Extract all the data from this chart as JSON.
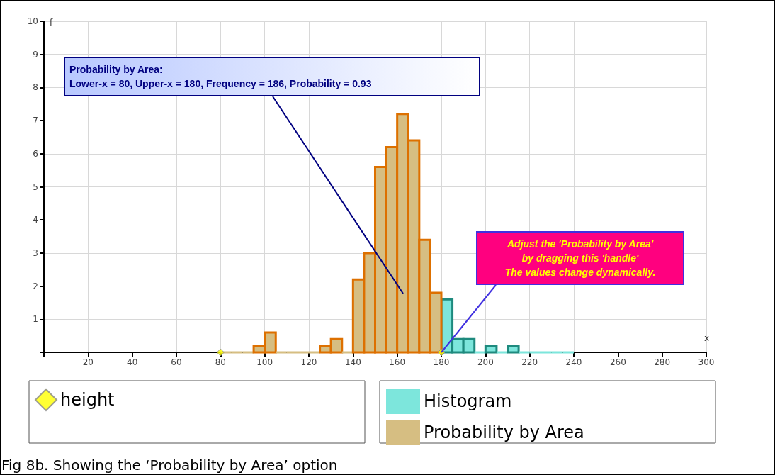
{
  "chart_data": {
    "type": "histogram",
    "xlabel": "x",
    "ylabel": "f",
    "bins": [
      80,
      85,
      90,
      95,
      100,
      105,
      110,
      115,
      120,
      125,
      130,
      135,
      140,
      145,
      150,
      155,
      160,
      165,
      170,
      175,
      180,
      185,
      190,
      195,
      200,
      205,
      210,
      215,
      220,
      225,
      230,
      235,
      240
    ],
    "series": [
      {
        "name": "height",
        "type": "scatter",
        "color": "#ffff00",
        "marker": "diamond",
        "x": [
          80,
          180
        ],
        "values": [
          0,
          0
        ]
      },
      {
        "name": "Histogram",
        "color": "#7de6dc",
        "values": [
          null,
          null,
          null,
          null,
          null,
          null,
          null,
          null,
          null,
          null,
          null,
          null,
          null,
          null,
          null,
          null,
          null,
          null,
          null,
          null,
          1.6,
          0.4,
          0.4,
          0,
          0.2,
          0,
          0.2,
          0,
          0,
          0,
          0,
          0
        ]
      },
      {
        "name": "Probability by Area",
        "color": "#d6be82",
        "values": [
          0,
          0,
          0,
          0.2,
          0.6,
          0,
          0,
          0,
          0,
          0.2,
          0.4,
          0,
          2.2,
          3.0,
          5.6,
          6.2,
          7.2,
          6.4,
          3.4,
          1.8,
          null,
          null,
          null,
          null,
          null,
          null,
          null,
          null,
          null,
          null,
          null,
          null
        ]
      }
    ],
    "xlim": [
      0,
      300
    ],
    "xticks": [
      {
        "value": 0,
        "label": null
      },
      20,
      40,
      60,
      80,
      100,
      120,
      140,
      160,
      180,
      200,
      220,
      240,
      260,
      280,
      300
    ],
    "ylim": [
      0,
      10
    ],
    "yticks": [
      {
        "value": 0,
        "label": null
      },
      1,
      2,
      3,
      4,
      5,
      6,
      7,
      8,
      9,
      10
    ],
    "grid": true,
    "legend": "bottom",
    "annotations": [
      "Probability by Area:\nLower-x = 80, Upper-x = 180, Frequency = 186, Probability = 0.93",
      {
        "text": "Adjust the 'Probability by Area'\nby dragging this 'handle'\nThe values change dynamically.",
        "x": 180,
        "y": 0
      },
      "Fig 8b. Showing the ‘Probability by Area’ option"
    ]
  }
}
